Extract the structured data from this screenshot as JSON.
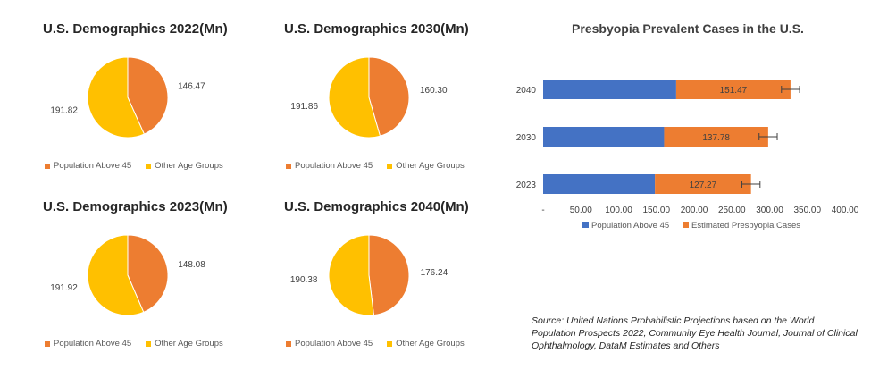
{
  "colors": {
    "above45": "#ED7D31",
    "other": "#FFC000",
    "bar_above45": "#4472C4",
    "bar_presbyopia": "#ED7D31"
  },
  "chart_data": [
    {
      "type": "pie",
      "title": "U.S. Demographics 2022(Mn)",
      "series": [
        {
          "name": "Population Above 45",
          "value": 146.47,
          "label": "146.47"
        },
        {
          "name": "Other Age Groups",
          "value": 191.82,
          "label": "191.82"
        }
      ],
      "legend": [
        "Population Above 45",
        "Other Age Groups"
      ],
      "legend_position": "bottom"
    },
    {
      "type": "pie",
      "title": "U.S. Demographics 2030(Mn)",
      "series": [
        {
          "name": "Population Above 45",
          "value": 160.3,
          "label": "160.30"
        },
        {
          "name": "Other Age Groups",
          "value": 191.86,
          "label": "191.86"
        }
      ],
      "legend": [
        "Population Above 45",
        "Other Age Groups"
      ],
      "legend_position": "bottom"
    },
    {
      "type": "pie",
      "title": "U.S. Demographics 2023(Mn)",
      "series": [
        {
          "name": "Population Above 45",
          "value": 148.08,
          "label": "148.08"
        },
        {
          "name": "Other Age Groups",
          "value": 191.92,
          "label": "191.92"
        }
      ],
      "legend": [
        "Population Above 45",
        "Other Age Groups"
      ],
      "legend_position": "bottom"
    },
    {
      "type": "pie",
      "title": "U.S. Demographics 2040(Mn)",
      "series": [
        {
          "name": "Population Above 45",
          "value": 176.24,
          "label": "176.24"
        },
        {
          "name": "Other Age Groups",
          "value": 190.38,
          "label": "190.38"
        }
      ],
      "legend": [
        "Population Above 45",
        "Other Age Groups"
      ],
      "legend_position": "bottom"
    },
    {
      "type": "bar",
      "orientation": "horizontal",
      "stacked": true,
      "title": "Presbyopia Prevalent Cases in the U.S.",
      "categories": [
        "2023",
        "2030",
        "2040"
      ],
      "series": [
        {
          "name": "Population Above 45",
          "values": [
            148.08,
            160.3,
            176.24
          ]
        },
        {
          "name": "Estimated Presbyopia Cases",
          "values": [
            127.27,
            137.78,
            151.47
          ],
          "labels": [
            "127.27",
            "137.78",
            "151.47"
          ],
          "error": [
            12,
            12,
            12
          ]
        }
      ],
      "xlim": [
        0,
        400
      ],
      "x_ticks": [
        "-",
        "50.00",
        "100.00",
        "150.00",
        "200.00",
        "250.00",
        "300.00",
        "350.00",
        "400.00"
      ],
      "legend": [
        "Population Above 45",
        "Estimated Presbyopia Cases"
      ],
      "legend_position": "bottom",
      "grid": false
    }
  ],
  "source_text": "Source: United Nations Probabilistic Projections based on the World Population Prospects 2022, Community Eye Health Journal, Journal of Clinical Ophthalmology, DataM Estimates and Others"
}
